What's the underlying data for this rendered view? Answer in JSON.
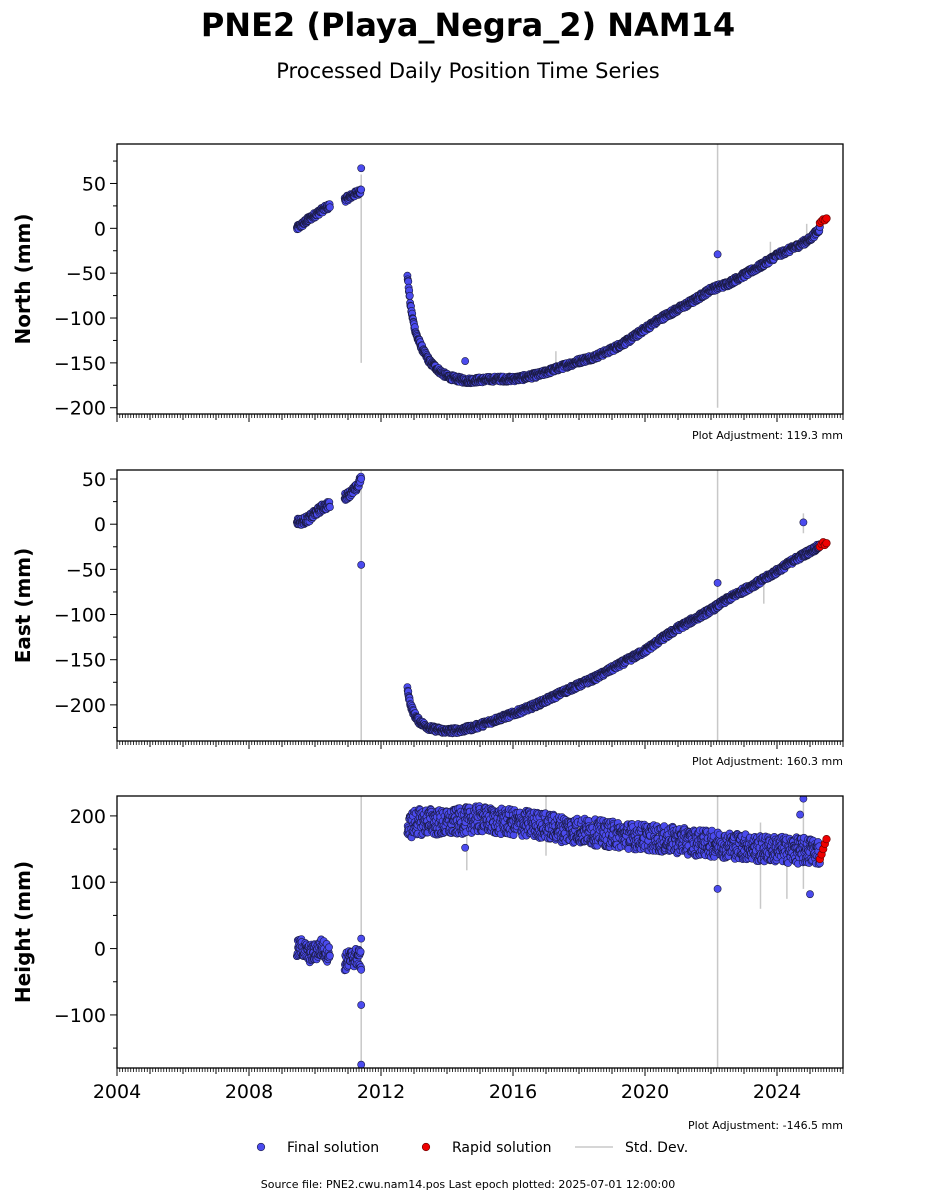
{
  "chart_data": {
    "type": "scatter",
    "title": "PNE2 (Playa_Negra_2) NAM14",
    "subtitle": "Processed Daily Position Time Series",
    "x_ticks": [
      "2004",
      "2008",
      "2012",
      "2016",
      "2020",
      "2024"
    ],
    "xlim": [
      2004.0,
      2026.0
    ],
    "grid": false,
    "legend_position": "bottom",
    "legend": [
      {
        "label": "Final solution",
        "kind": "final"
      },
      {
        "label": "Rapid solution",
        "kind": "rapid"
      },
      {
        "label": "Std. Dev.",
        "kind": "std"
      }
    ],
    "colors": {
      "final": "#4b4bee",
      "final_edge": "#1a1a40",
      "rapid": "#ee0000",
      "rapid_edge": "#600000",
      "std": "#c8c8c8"
    },
    "footer": "Source file: PNE2.cwu.nam14.pos  Last epoch plotted: 2025-07-01 12:00:00",
    "panels": [
      {
        "key": "north",
        "ylabel": "North (mm)",
        "ylim": [
          -207,
          94
        ],
        "yticks": [
          50,
          0,
          -50,
          -100,
          -150,
          -200
        ],
        "ytick_labels": [
          "50",
          "0",
          "−50",
          "−100",
          "−150",
          "−200"
        ],
        "adjustment": "Plot Adjustment: 119.3 mm",
        "segments": [
          {
            "t": [
              2009.45,
              2009.6,
              2009.8,
              2010.0,
              2010.2,
              2010.45
            ],
            "v": [
              0,
              4,
              10,
              15,
              20,
              25
            ],
            "band": 3
          },
          {
            "t": [
              2010.9,
              2011.1,
              2011.3,
              2011.4
            ],
            "v": [
              32,
              36,
              40,
              42
            ],
            "band": 3
          },
          {
            "t": [
              2012.8,
              2012.85,
              2012.9,
              2013.0,
              2013.1,
              2013.3,
              2013.5,
              2013.8,
              2014.0,
              2014.3,
              2014.6,
              2015.0,
              2015.5,
              2016.0,
              2016.4,
              2016.8,
              2017.2,
              2017.6,
              2018.0,
              2018.5,
              2019.0,
              2019.5,
              2020.0,
              2020.5,
              2021.0,
              2021.5,
              2022.0,
              2022.5,
              2023.0,
              2023.5,
              2024.0,
              2024.5,
              2025.0,
              2025.3
            ],
            "v": [
              -52,
              -70,
              -88,
              -108,
              -122,
              -138,
              -150,
              -160,
              -165,
              -168,
              -170,
              -169,
              -168,
              -168,
              -166,
              -163,
              -158,
              -153,
              -148,
              -143,
              -135,
              -125,
              -112,
              -100,
              -90,
              -80,
              -68,
              -62,
              -52,
              -42,
              -30,
              -22,
              -12,
              0
            ],
            "band": 3
          }
        ],
        "outliers": [
          {
            "t": 2011.4,
            "v": 67
          },
          {
            "t": 2014.55,
            "v": -148
          },
          {
            "t": 2022.2,
            "v": -29
          }
        ],
        "rapid": {
          "t": [
            2025.3,
            2025.35,
            2025.4,
            2025.45,
            2025.5
          ],
          "v": [
            6,
            8,
            10,
            9,
            11
          ]
        },
        "std_bars": [
          {
            "t": 2011.4,
            "lo": -150,
            "hi": 60
          },
          {
            "t": 2022.2,
            "lo": -200,
            "hi": 94
          },
          {
            "t": 2017.3,
            "lo": -162,
            "hi": -137
          },
          {
            "t": 2023.8,
            "lo": -40,
            "hi": -15
          },
          {
            "t": 2024.9,
            "lo": -20,
            "hi": 5
          }
        ]
      },
      {
        "key": "east",
        "ylabel": "East (mm)",
        "ylim": [
          -240,
          60
        ],
        "yticks": [
          50,
          0,
          -50,
          -100,
          -150,
          -200
        ],
        "ytick_labels": [
          "50",
          "0",
          "−50",
          "−100",
          "−150",
          "−200"
        ],
        "adjustment": "Plot Adjustment: 160.3 mm",
        "segments": [
          {
            "t": [
              2009.45,
              2009.6,
              2009.8,
              2010.0,
              2010.2,
              2010.45
            ],
            "v": [
              3,
              3,
              6,
              12,
              18,
              22
            ],
            "band": 4
          },
          {
            "t": [
              2010.9,
              2011.1,
              2011.3,
              2011.4
            ],
            "v": [
              30,
              35,
              42,
              52
            ],
            "band": 4
          },
          {
            "t": [
              2012.8,
              2012.85,
              2012.9,
              2013.0,
              2013.15,
              2013.3,
              2013.5,
              2013.8,
              2014.0,
              2014.4,
              2014.8,
              2015.2,
              2015.6,
              2016.0,
              2016.5,
              2017.0,
              2017.5,
              2018.0,
              2018.5,
              2019.0,
              2019.5,
              2020.0,
              2020.5,
              2021.0,
              2021.5,
              2022.0,
              2022.5,
              2023.0,
              2023.5,
              2024.0,
              2024.5,
              2025.0,
              2025.3
            ],
            "v": [
              -183,
              -192,
              -200,
              -210,
              -218,
              -222,
              -226,
              -228,
              -229,
              -228,
              -225,
              -220,
              -215,
              -210,
              -203,
              -195,
              -186,
              -178,
              -170,
              -160,
              -150,
              -140,
              -127,
              -115,
              -105,
              -95,
              -83,
              -73,
              -63,
              -52,
              -40,
              -30,
              -24
            ],
            "band": 3
          }
        ],
        "outliers": [
          {
            "t": 2011.4,
            "v": -45
          },
          {
            "t": 2022.2,
            "v": -65
          },
          {
            "t": 2024.8,
            "v": 2
          }
        ],
        "rapid": {
          "t": [
            2025.3,
            2025.35,
            2025.4,
            2025.45,
            2025.5
          ],
          "v": [
            -25,
            -22,
            -20,
            -23,
            -21
          ]
        },
        "std_bars": [
          {
            "t": 2011.4,
            "lo": -240,
            "hi": 60
          },
          {
            "t": 2022.2,
            "lo": -240,
            "hi": 60
          },
          {
            "t": 2023.6,
            "lo": -88,
            "hi": -60
          },
          {
            "t": 2024.8,
            "lo": -10,
            "hi": 12
          }
        ]
      },
      {
        "key": "height",
        "ylabel": "Height (mm)",
        "ylim": [
          -180,
          230
        ],
        "yticks": [
          200,
          100,
          0,
          -100
        ],
        "ytick_labels": [
          "200",
          "100",
          "0",
          "−100"
        ],
        "adjustment": "Plot Adjustment: -146.5 mm",
        "segments": [
          {
            "t": [
              2009.45,
              2009.6,
              2009.8,
              2010.0,
              2010.2,
              2010.45
            ],
            "v": [
              -2,
              2,
              -8,
              -6,
              2,
              -10
            ],
            "band": 14
          },
          {
            "t": [
              2010.9,
              2011.1,
              2011.3,
              2011.4
            ],
            "v": [
              -20,
              -15,
              -12,
              -20
            ],
            "band": 14
          },
          {
            "t": [
              2012.8,
              2013.0,
              2013.5,
              2014.0,
              2014.5,
              2015.0,
              2015.5,
              2016.0,
              2016.5,
              2017.0,
              2017.5,
              2018.0,
              2018.5,
              2019.0,
              2019.5,
              2020.0,
              2020.5,
              2021.0,
              2021.5,
              2022.0,
              2022.5,
              2023.0,
              2023.5,
              2024.0,
              2024.5,
              2025.0,
              2025.3
            ],
            "v": [
              180,
              190,
              192,
              188,
              193,
              195,
              192,
              190,
              188,
              185,
              180,
              178,
              175,
              172,
              170,
              168,
              165,
              163,
              160,
              158,
              156,
              154,
              150,
              150,
              148,
              147,
              146
            ],
            "band": 20
          }
        ],
        "outliers": [
          {
            "t": 2011.4,
            "v": -85
          },
          {
            "t": 2011.4,
            "v": -175
          },
          {
            "t": 2011.4,
            "v": 15
          },
          {
            "t": 2014.55,
            "v": 152
          },
          {
            "t": 2022.2,
            "v": 90
          },
          {
            "t": 2024.7,
            "v": 202
          },
          {
            "t": 2024.8,
            "v": 226
          },
          {
            "t": 2025.0,
            "v": 82
          }
        ],
        "rapid": {
          "t": [
            2025.3,
            2025.35,
            2025.4,
            2025.45,
            2025.5
          ],
          "v": [
            135,
            142,
            150,
            158,
            165
          ]
        },
        "std_bars": [
          {
            "t": 2011.4,
            "lo": -180,
            "hi": 230
          },
          {
            "t": 2022.2,
            "lo": -180,
            "hi": 230
          },
          {
            "t": 2014.6,
            "lo": 118,
            "hi": 185
          },
          {
            "t": 2017.0,
            "lo": 140,
            "hi": 230
          },
          {
            "t": 2023.5,
            "lo": 60,
            "hi": 190
          },
          {
            "t": 2024.3,
            "lo": 75,
            "hi": 160
          },
          {
            "t": 2024.8,
            "lo": 90,
            "hi": 230
          }
        ]
      }
    ]
  }
}
